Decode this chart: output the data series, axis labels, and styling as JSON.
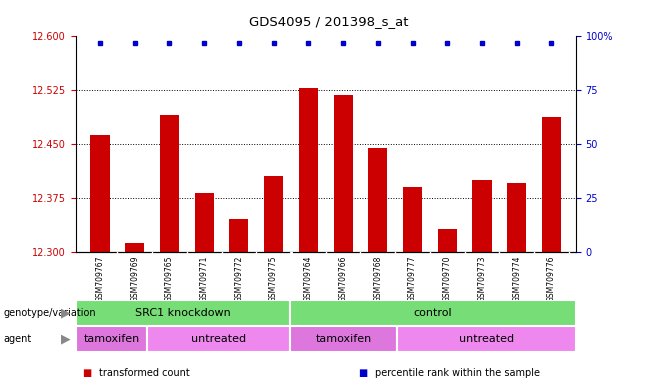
{
  "title": "GDS4095 / 201398_s_at",
  "samples": [
    "GSM709767",
    "GSM709769",
    "GSM709765",
    "GSM709771",
    "GSM709772",
    "GSM709775",
    "GSM709764",
    "GSM709766",
    "GSM709768",
    "GSM709777",
    "GSM709770",
    "GSM709773",
    "GSM709774",
    "GSM709776"
  ],
  "bar_values": [
    12.463,
    12.312,
    12.49,
    12.382,
    12.345,
    12.405,
    12.528,
    12.518,
    12.445,
    12.39,
    12.332,
    12.4,
    12.395,
    12.487
  ],
  "bar_color": "#cc0000",
  "dot_color": "#0000cc",
  "ylim_left": [
    12.3,
    12.6
  ],
  "ylim_right": [
    0,
    100
  ],
  "yticks_left": [
    12.3,
    12.375,
    12.45,
    12.525,
    12.6
  ],
  "yticks_right": [
    0,
    25,
    50,
    75,
    100
  ],
  "grid_values": [
    12.375,
    12.45,
    12.525
  ],
  "genotype_groups": [
    {
      "label": "SRC1 knockdown",
      "start": 0,
      "end": 6
    },
    {
      "label": "control",
      "start": 6,
      "end": 14
    }
  ],
  "agent_groups": [
    {
      "label": "tamoxifen",
      "start": 0,
      "end": 2
    },
    {
      "label": "untreated",
      "start": 2,
      "end": 6
    },
    {
      "label": "tamoxifen",
      "start": 6,
      "end": 9
    },
    {
      "label": "untreated",
      "start": 9,
      "end": 14
    }
  ],
  "genotype_color": "#77dd77",
  "agent_color_tamoxifen": "#dd77dd",
  "agent_color_untreated": "#ee88ee",
  "xtick_bg_color": "#d0d0d0",
  "left_axis_color": "#cc0000",
  "right_axis_color": "#0000cc",
  "bg_color": "#ffffff",
  "label_row1": "genotype/variation",
  "label_row2": "agent",
  "legend_items": [
    {
      "label": "transformed count",
      "color": "#cc0000"
    },
    {
      "label": "percentile rank within the sample",
      "color": "#0000cc"
    }
  ]
}
